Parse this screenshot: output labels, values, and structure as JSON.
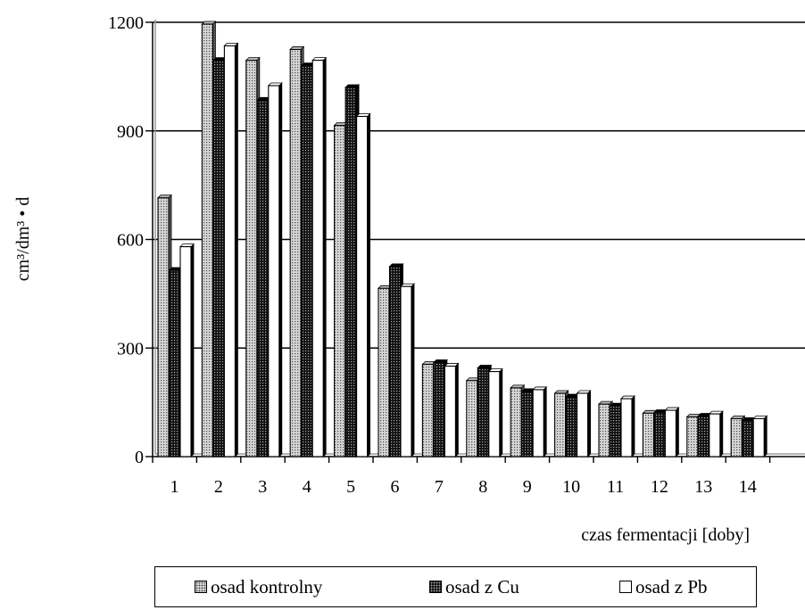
{
  "chart_data": {
    "type": "bar",
    "xlabel": "czas fermentacji [doby]",
    "ylabel": "cm³/dm³ • d",
    "ylim": [
      0,
      1200
    ],
    "yticks": [
      0,
      300,
      600,
      900,
      1200
    ],
    "grid": true,
    "legend_position": "bottom",
    "categories": [
      "1",
      "2",
      "3",
      "4",
      "5",
      "6",
      "7",
      "8",
      "9",
      "10",
      "11",
      "12",
      "13",
      "14"
    ],
    "series": [
      {
        "name": "osad kontrolny",
        "values": [
          715,
          1195,
          1095,
          1125,
          915,
          465,
          255,
          210,
          190,
          175,
          145,
          120,
          110,
          105
        ]
      },
      {
        "name": "osad z Cu",
        "values": [
          515,
          1095,
          985,
          1080,
          1020,
          525,
          260,
          245,
          180,
          165,
          140,
          122,
          112,
          100
        ]
      },
      {
        "name": "osad z Pb",
        "values": [
          580,
          1135,
          1025,
          1095,
          940,
          470,
          250,
          235,
          185,
          175,
          160,
          128,
          118,
          105
        ]
      }
    ]
  },
  "legend": {
    "items": [
      {
        "label": "osad kontrolny"
      },
      {
        "label": "osad z Cu"
      },
      {
        "label": "osad z Pb"
      }
    ]
  }
}
